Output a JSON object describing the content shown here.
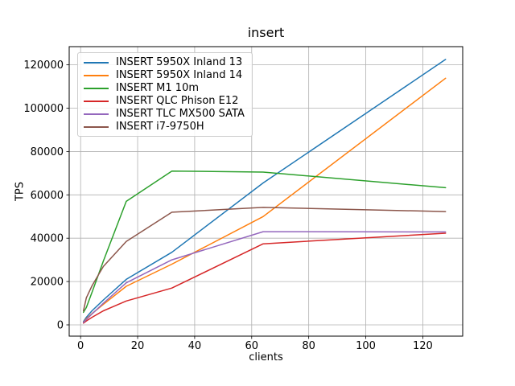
{
  "figure": {
    "title": "insert",
    "xlabel": "clients",
    "ylabel": "TPS"
  },
  "chart_data": {
    "type": "line",
    "title": "insert",
    "xlabel": "clients",
    "ylabel": "TPS",
    "grid": true,
    "legend_position": "upper left",
    "xlim": [
      -4,
      134
    ],
    "ylim": [
      -5200,
      128400
    ],
    "xticks": [
      0,
      20,
      40,
      60,
      80,
      100,
      120
    ],
    "yticks": [
      0,
      20000,
      40000,
      60000,
      80000,
      100000,
      120000
    ],
    "x": [
      1,
      2,
      4,
      8,
      16,
      32,
      64,
      128
    ],
    "series": [
      {
        "name": "INSERT 5950X Inland 13",
        "color": "#1f77b4",
        "values": [
          1500,
          3500,
          6500,
          11500,
          21000,
          33500,
          65500,
          122500
        ]
      },
      {
        "name": "INSERT 5950X Inland 14",
        "color": "#ff7f0e",
        "values": [
          1200,
          2800,
          5200,
          9500,
          17800,
          28000,
          50000,
          113800
        ]
      },
      {
        "name": "INSERT M1 10m",
        "color": "#2ca02c",
        "values": [
          5800,
          8000,
          15000,
          29500,
          57000,
          71000,
          70500,
          63300
        ]
      },
      {
        "name": "INSERT QLC Phison E12",
        "color": "#d62728",
        "values": [
          800,
          1800,
          3500,
          6500,
          11000,
          17000,
          37400,
          42300
        ]
      },
      {
        "name": "INSERT TLC MX500 SATA",
        "color": "#9467bd",
        "values": [
          1100,
          2500,
          5000,
          10000,
          19400,
          30000,
          43000,
          42900
        ]
      },
      {
        "name": "INSERT i7-9750H",
        "color": "#8c564b",
        "values": [
          6500,
          12500,
          18000,
          27000,
          38500,
          52000,
          54200,
          52300
        ]
      }
    ],
    "colors": {
      "grid": "#b0b0b0",
      "spine": "#000000",
      "background": "#ffffff",
      "legend_border": "#cccccc"
    }
  }
}
